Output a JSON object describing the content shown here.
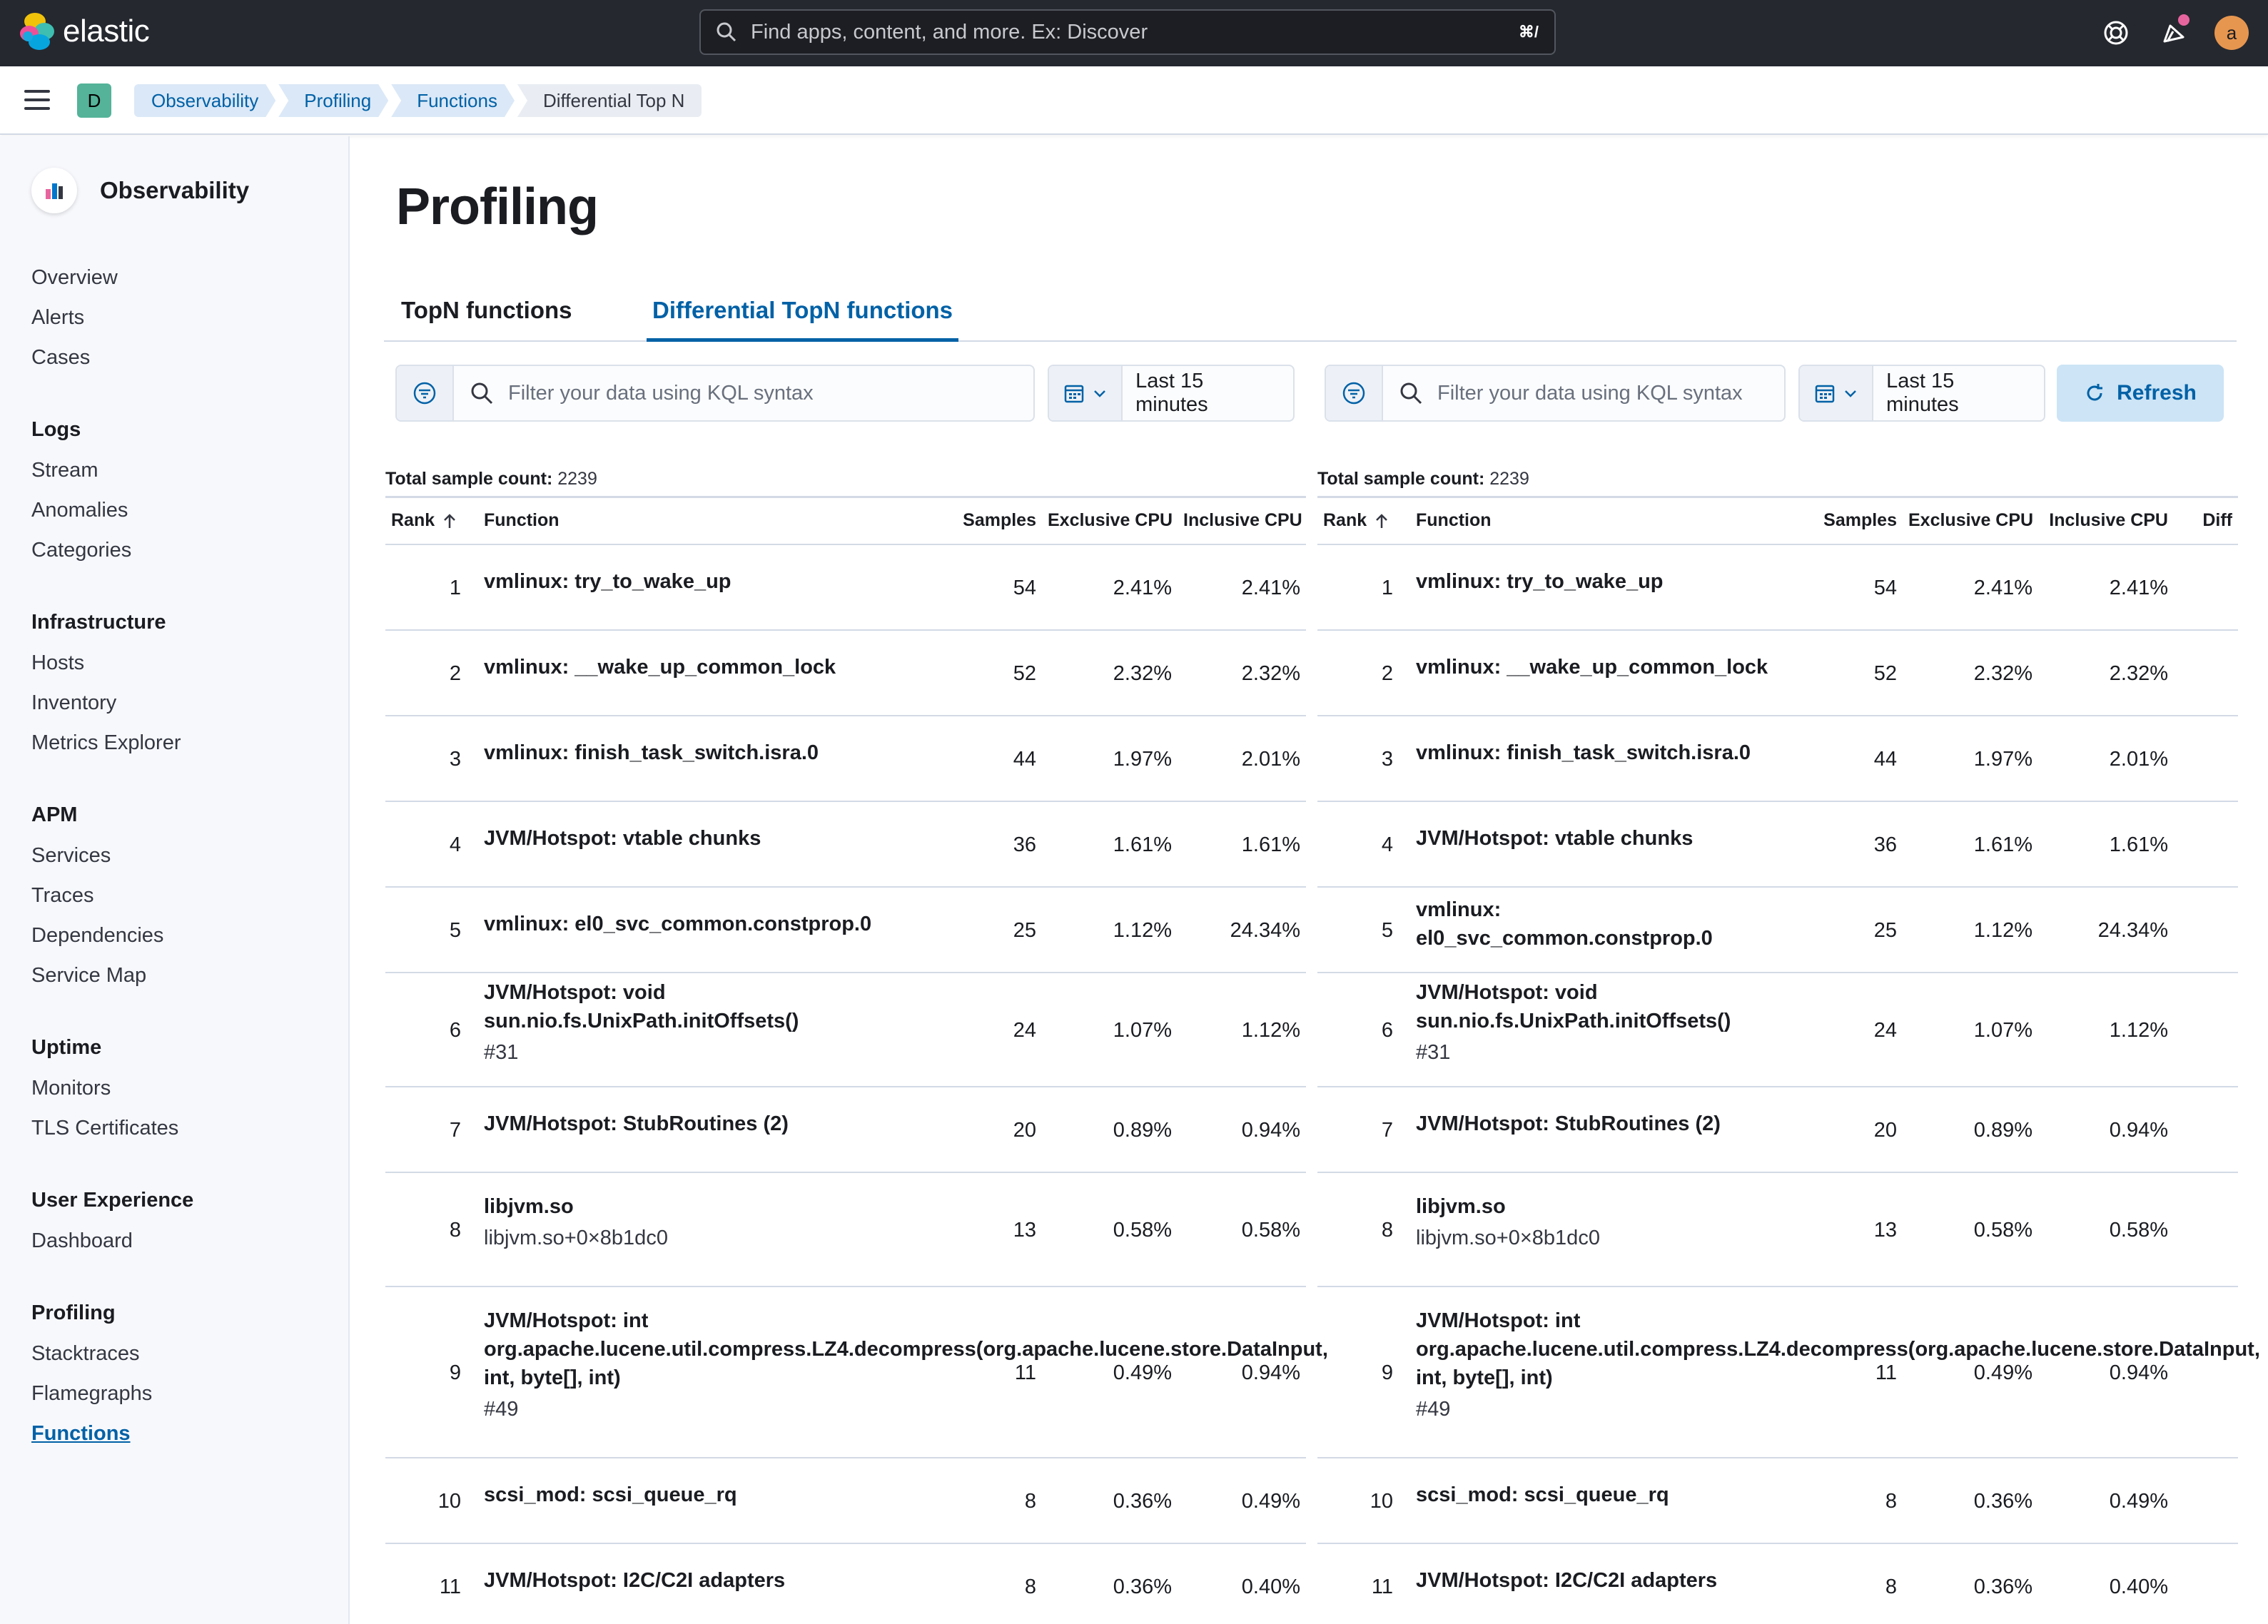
{
  "header": {
    "brand": "elastic",
    "search_placeholder": "Find apps, content, and more. Ex: Discover",
    "search_shortcut": "⌘/",
    "user_initial": "a"
  },
  "breadcrumb": {
    "space_initial": "D",
    "items": [
      "Observability",
      "Profiling",
      "Functions",
      "Differential Top N"
    ]
  },
  "sidebar": {
    "title": "Observability",
    "top_items": [
      "Overview",
      "Alerts",
      "Cases"
    ],
    "groups": [
      {
        "label": "Logs",
        "items": [
          "Stream",
          "Anomalies",
          "Categories"
        ]
      },
      {
        "label": "Infrastructure",
        "items": [
          "Hosts",
          "Inventory",
          "Metrics Explorer"
        ]
      },
      {
        "label": "APM",
        "items": [
          "Services",
          "Traces",
          "Dependencies",
          "Service Map"
        ]
      },
      {
        "label": "Uptime",
        "items": [
          "Monitors",
          "TLS Certificates"
        ]
      },
      {
        "label": "User Experience",
        "items": [
          "Dashboard"
        ]
      },
      {
        "label": "Profiling",
        "items": [
          "Stacktraces",
          "Flamegraphs",
          "Functions"
        ]
      }
    ],
    "active_item": "Functions"
  },
  "main": {
    "title": "Profiling",
    "tabs": [
      "TopN functions",
      "Differential TopN functions"
    ],
    "selected_tab": "Differential TopN functions",
    "left": {
      "query_placeholder": "Filter your data using KQL syntax",
      "date_range": "Last 15 minutes",
      "total_label": "Total sample count:",
      "total_value": "2239"
    },
    "right": {
      "query_placeholder": "Filter your data using KQL syntax",
      "date_range": "Last 15 minutes",
      "total_label": "Total sample count:",
      "total_value": "2239",
      "refresh_label": "Refresh"
    },
    "columns_left": [
      "Rank",
      "Function",
      "Samples",
      "Exclusive CPU",
      "Inclusive CPU"
    ],
    "columns_right": [
      "Rank",
      "Function",
      "Samples",
      "Exclusive CPU",
      "Inclusive CPU",
      "Diff"
    ],
    "rows": [
      {
        "rank": "1",
        "fn": "vmlinux: try_to_wake_up",
        "sub": "",
        "samples": "54",
        "excl": "2.41%",
        "incl": "2.41%"
      },
      {
        "rank": "2",
        "fn": "vmlinux: __wake_up_common_lock",
        "sub": "",
        "samples": "52",
        "excl": "2.32%",
        "incl": "2.32%"
      },
      {
        "rank": "3",
        "fn": "vmlinux: finish_task_switch.isra.0",
        "sub": "",
        "samples": "44",
        "excl": "1.97%",
        "incl": "2.01%"
      },
      {
        "rank": "4",
        "fn": "JVM/Hotspot: vtable chunks",
        "sub": "",
        "samples": "36",
        "excl": "1.61%",
        "incl": "1.61%"
      },
      {
        "rank": "5",
        "fn": "vmlinux: el0_svc_common.constprop.0",
        "sub": "",
        "samples": "25",
        "excl": "1.12%",
        "incl": "24.34%"
      },
      {
        "rank": "6",
        "fn": "JVM/Hotspot: void sun.nio.fs.UnixPath.initOffsets()",
        "sub": "#31",
        "samples": "24",
        "excl": "1.07%",
        "incl": "1.12%"
      },
      {
        "rank": "7",
        "fn": "JVM/Hotspot: StubRoutines (2)",
        "sub": "",
        "samples": "20",
        "excl": "0.89%",
        "incl": "0.94%"
      },
      {
        "rank": "8",
        "fn": "libjvm.so",
        "sub": "libjvm.so+0×8b1dc0",
        "samples": "13",
        "excl": "0.58%",
        "incl": "0.58%"
      },
      {
        "rank": "9",
        "fn": "JVM/Hotspot: int org.apache.lucene.util.compress.LZ4.decompress(org.apache.lucene.store.DataInput, int, byte[], int)",
        "sub": "#49",
        "samples": "11",
        "excl": "0.49%",
        "incl": "0.94%"
      },
      {
        "rank": "10",
        "fn": "scsi_mod: scsi_queue_rq",
        "sub": "",
        "samples": "8",
        "excl": "0.36%",
        "incl": "0.49%"
      },
      {
        "rank": "11",
        "fn": "JVM/Hotspot: I2C/C2I adapters",
        "sub": "",
        "samples": "8",
        "excl": "0.36%",
        "incl": "0.40%"
      }
    ]
  },
  "colors": {
    "header_bg": "#25282f",
    "accent": "#0061a6",
    "space_badge": "#54b399",
    "avatar": "#e7964f"
  }
}
